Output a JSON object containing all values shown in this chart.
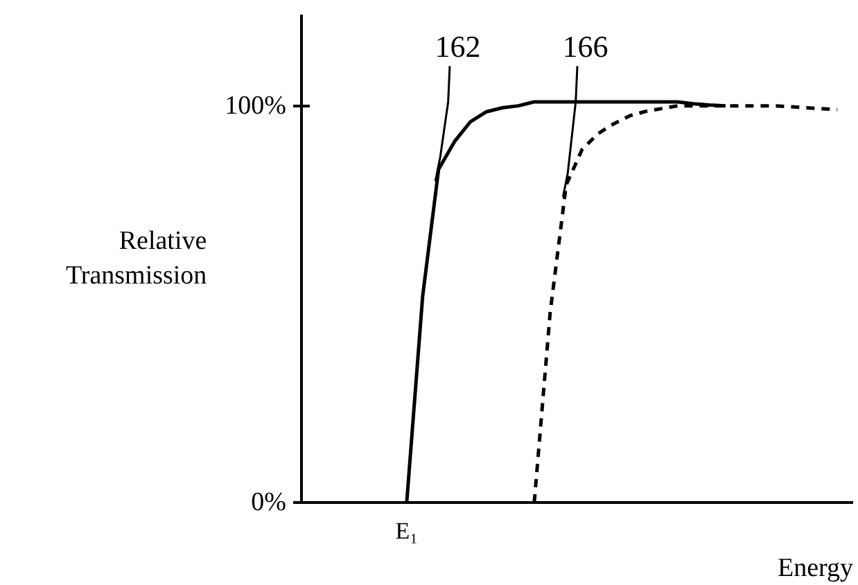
{
  "chart_data": {
    "type": "line",
    "ylabel": "Relative\nTransmission",
    "xlabel": "Energy",
    "categories": [
      null,
      null,
      null,
      null,
      null,
      "E₁",
      null,
      null,
      null,
      null,
      null,
      null,
      null,
      null,
      null,
      null,
      null,
      null,
      null,
      null,
      null,
      null,
      null,
      null,
      null,
      null,
      null,
      null,
      null,
      null,
      null,
      null,
      null
    ],
    "series": [
      {
        "color": "#000000",
        "line_style": "solid",
        "values": [
          null,
          null,
          null,
          null,
          null,
          0,
          52,
          84,
          91,
          96,
          98.5,
          99.5,
          100,
          101,
          101,
          101,
          101,
          101,
          101,
          101,
          101,
          101,
          101,
          100.5,
          100.2,
          100,
          null,
          null,
          null,
          null,
          null,
          null,
          null
        ]
      },
      {
        "color": "#000000",
        "line_style": "dashed",
        "values": [
          null,
          null,
          null,
          null,
          null,
          null,
          null,
          null,
          null,
          null,
          null,
          null,
          null,
          0,
          48,
          80,
          89,
          93,
          95.5,
          97.5,
          98.6,
          99.3,
          100,
          100,
          100,
          100,
          100,
          100,
          100,
          99.8,
          99.5,
          99.3,
          99
        ]
      }
    ],
    "annotations": [
      "162",
      "166"
    ],
    "ylim": [
      0,
      123
    ],
    "yticks": [
      {
        "value": 0,
        "label": "0%"
      },
      {
        "value": 100,
        "label": "100%"
      }
    ],
    "grid": false,
    "marker": "none"
  }
}
